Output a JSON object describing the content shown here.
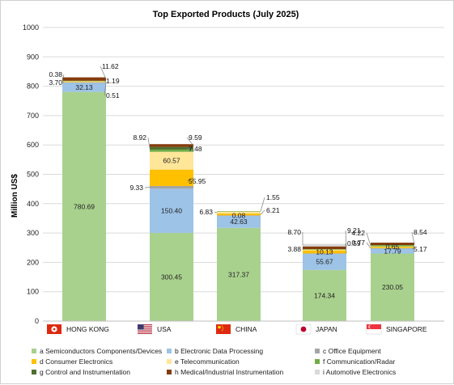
{
  "chart_data": {
    "type": "bar",
    "stacked": true,
    "title": "Top Exported Products (July 2025)",
    "ylabel": "Million US$",
    "ylim": [
      0,
      1000
    ],
    "yticks": [
      0,
      100,
      200,
      300,
      400,
      500,
      600,
      700,
      800,
      900,
      1000
    ],
    "grid": true,
    "legend_position": "bottom",
    "categories": [
      "HONG KONG",
      "USA",
      "CHINA",
      "JAPAN",
      "SINGAPORE"
    ],
    "category_flags": [
      "hong-kong-flag-icon",
      "usa-flag-icon",
      "china-flag-icon",
      "japan-flag-icon",
      "singapore-flag-icon"
    ],
    "series": [
      {
        "name": "a Semiconductors Components/Devices",
        "color": "#a9d18e",
        "values": [
          780.69,
          300.45,
          317.37,
          174.34,
          230.05
        ]
      },
      {
        "name": "b Electronic Data Processing",
        "color": "#9dc3e6",
        "values": [
          32.13,
          150.4,
          42.63,
          55.67,
          17.79
        ]
      },
      {
        "name": "c Office Equipment",
        "color": "#a5a5a5",
        "values": [
          0.51,
          9.33,
          0.08,
          0.59,
          0.77
        ]
      },
      {
        "name": "d Consumer Electronics",
        "color": "#ffc000",
        "values": [
          1.19,
          55.95,
          6.21,
          10.13,
          5.17
        ]
      },
      {
        "name": "e Telecommunication",
        "color": "#ffe699",
        "values": [
          3.7,
          60.57,
          6.83,
          3.88,
          0.65
        ]
      },
      {
        "name": "f Communication/Radar",
        "color": "#70ad47",
        "values": [
          0.38,
          7.48,
          1.55,
          0.59,
          4.22
        ]
      },
      {
        "name": "g Control and Instrumentation",
        "color": "#4e6f2f",
        "values": [
          0.0,
          8.92,
          0.0,
          0.0,
          0.0
        ]
      },
      {
        "name": "h Medical/Industrial Instrumentation",
        "color": "#843c0c",
        "values": [
          11.62,
          9.59,
          0.0,
          9.21,
          8.54
        ]
      },
      {
        "name": "i Automotive Electronics",
        "color": "#d9d9d9",
        "values": [
          0.0,
          0.0,
          0.0,
          8.7,
          0.0
        ]
      }
    ],
    "inner_labels": [
      {
        "category": 0,
        "series": 0,
        "text": "780.69"
      },
      {
        "category": 0,
        "series": 1,
        "text": "32.13"
      },
      {
        "category": 1,
        "series": 0,
        "text": "300.45"
      },
      {
        "category": 1,
        "series": 1,
        "text": "150.40"
      },
      {
        "category": 1,
        "series": 4,
        "text": "60.57"
      },
      {
        "category": 2,
        "series": 0,
        "text": "317.37"
      },
      {
        "category": 2,
        "series": 1,
        "text": "42.63"
      },
      {
        "category": 2,
        "series": 2,
        "text": "0.08"
      },
      {
        "category": 3,
        "series": 0,
        "text": "174.34"
      },
      {
        "category": 3,
        "series": 1,
        "text": "55.67"
      },
      {
        "category": 3,
        "series": 3,
        "text": "10.13"
      },
      {
        "category": 4,
        "series": 0,
        "text": "230.05"
      },
      {
        "category": 4,
        "series": 1,
        "text": "17.79"
      },
      {
        "category": 4,
        "series": 4,
        "text": "0.65"
      }
    ],
    "callouts": [
      {
        "category": 0,
        "series": 7,
        "text": "11.62"
      },
      {
        "category": 0,
        "series": 5,
        "text": "0.38"
      },
      {
        "category": 0,
        "series": 4,
        "text": "3.70"
      },
      {
        "category": 0,
        "series": 3,
        "text": "1.19"
      },
      {
        "category": 0,
        "series": 2,
        "text": "0.51"
      },
      {
        "category": 1,
        "series": 6,
        "text": "8.92"
      },
      {
        "category": 1,
        "series": 7,
        "text": "9.59"
      },
      {
        "category": 1,
        "series": 5,
        "text": "7.48"
      },
      {
        "category": 1,
        "series": 3,
        "text": "55.95"
      },
      {
        "category": 1,
        "series": 2,
        "text": "9.33"
      },
      {
        "category": 2,
        "series": 5,
        "text": "1.55"
      },
      {
        "category": 2,
        "series": 4,
        "text": "6.83"
      },
      {
        "category": 2,
        "series": 3,
        "text": "6.21"
      },
      {
        "category": 3,
        "series": 8,
        "text": "8.70"
      },
      {
        "category": 3,
        "series": 7,
        "text": "9.21"
      },
      {
        "category": 3,
        "series": 4,
        "text": "3.88"
      },
      {
        "category": 3,
        "series": 2,
        "text": "0.59"
      },
      {
        "category": 4,
        "series": 5,
        "text": "4.22"
      },
      {
        "category": 4,
        "series": 7,
        "text": "8.54"
      },
      {
        "category": 4,
        "series": 2,
        "text": "0.77"
      },
      {
        "category": 4,
        "series": 3,
        "text": "5.17"
      }
    ]
  }
}
